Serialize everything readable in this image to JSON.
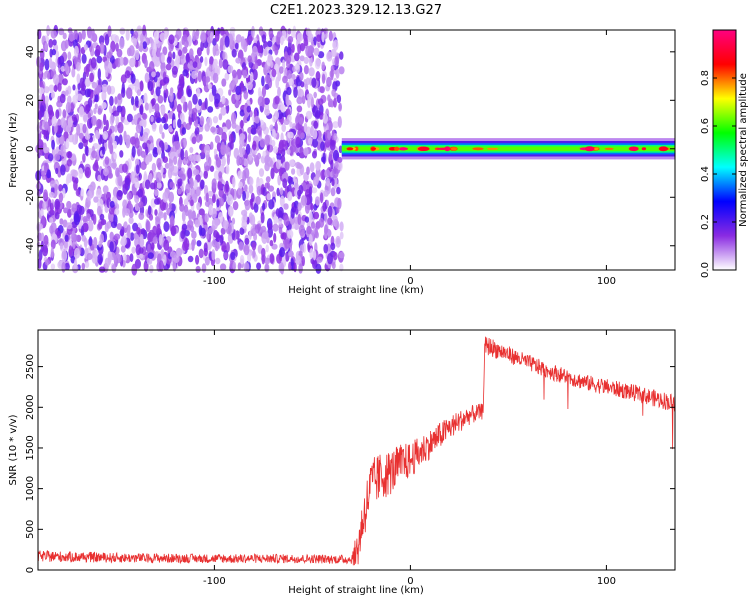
{
  "title": "C2E1.2023.329.12.13.G27",
  "chart_data": [
    {
      "type": "heatmap",
      "xlabel": "Height of straight line (km)",
      "ylabel": "Frequency (Hz)",
      "xlim": [
        -190,
        135
      ],
      "ylim": [
        -50,
        49
      ],
      "xticks": [
        -100,
        0,
        100
      ],
      "xtick_labels": [
        "-100",
        "0",
        "100"
      ],
      "yticks": [
        -40,
        -20,
        0,
        20,
        40
      ],
      "ytick_labels": [
        "-40",
        "-20",
        "0",
        "20",
        "40"
      ],
      "noise_region": {
        "x": [
          -190,
          -35
        ],
        "description_values": "scattered low amplitude 0.0-0.2"
      },
      "signal_band": {
        "x": [
          -35,
          135
        ],
        "center_frequency": 0,
        "half_width_hz": 2
      },
      "colorbar": {
        "label": "Normalized spectral amplitude",
        "range": [
          0,
          1
        ],
        "ticks": [
          0.0,
          0.2,
          0.4,
          0.6,
          0.8
        ],
        "tick_labels": [
          "0.0",
          "0.2",
          "0.4",
          "0.6",
          "0.8"
        ],
        "colors": [
          "#ffffff",
          "#8a2be2",
          "#0000ff",
          "#00ffff",
          "#00ff00",
          "#ffff00",
          "#ff0000",
          "#ff0080"
        ]
      }
    },
    {
      "type": "line",
      "xlabel": "Height of straight line (km)",
      "ylabel": "SNR (10 * v/v)",
      "xlim": [
        -190,
        135
      ],
      "ylim": [
        0,
        2950
      ],
      "xticks": [
        -100,
        0,
        100
      ],
      "xtick_labels": [
        "-100",
        "0",
        "100"
      ],
      "yticks": [
        0,
        500,
        1000,
        1500,
        2000,
        2500
      ],
      "ytick_labels": [
        "0",
        "500",
        "1000",
        "1500",
        "2000",
        "2500"
      ],
      "line_color": "#e83030",
      "series": [
        {
          "name": "SNR",
          "x": [
            -190,
            -150,
            -100,
            -60,
            -30,
            -27,
            -24,
            -20,
            -15,
            -10,
            -5,
            0,
            10,
            20,
            30,
            37,
            38,
            40,
            45,
            55,
            70,
            90,
            110,
            135
          ],
          "y": [
            170,
            150,
            140,
            140,
            130,
            250,
            650,
            1050,
            1150,
            1200,
            1300,
            1350,
            1550,
            1750,
            1900,
            1950,
            2750,
            2750,
            2700,
            2600,
            2450,
            2300,
            2200,
            2050
          ],
          "noise_amp": [
            70,
            60,
            55,
            55,
            55,
            250,
            300,
            320,
            300,
            280,
            250,
            220,
            180,
            150,
            120,
            100,
            120,
            120,
            110,
            100,
            100,
            100,
            100,
            110
          ]
        }
      ]
    }
  ]
}
